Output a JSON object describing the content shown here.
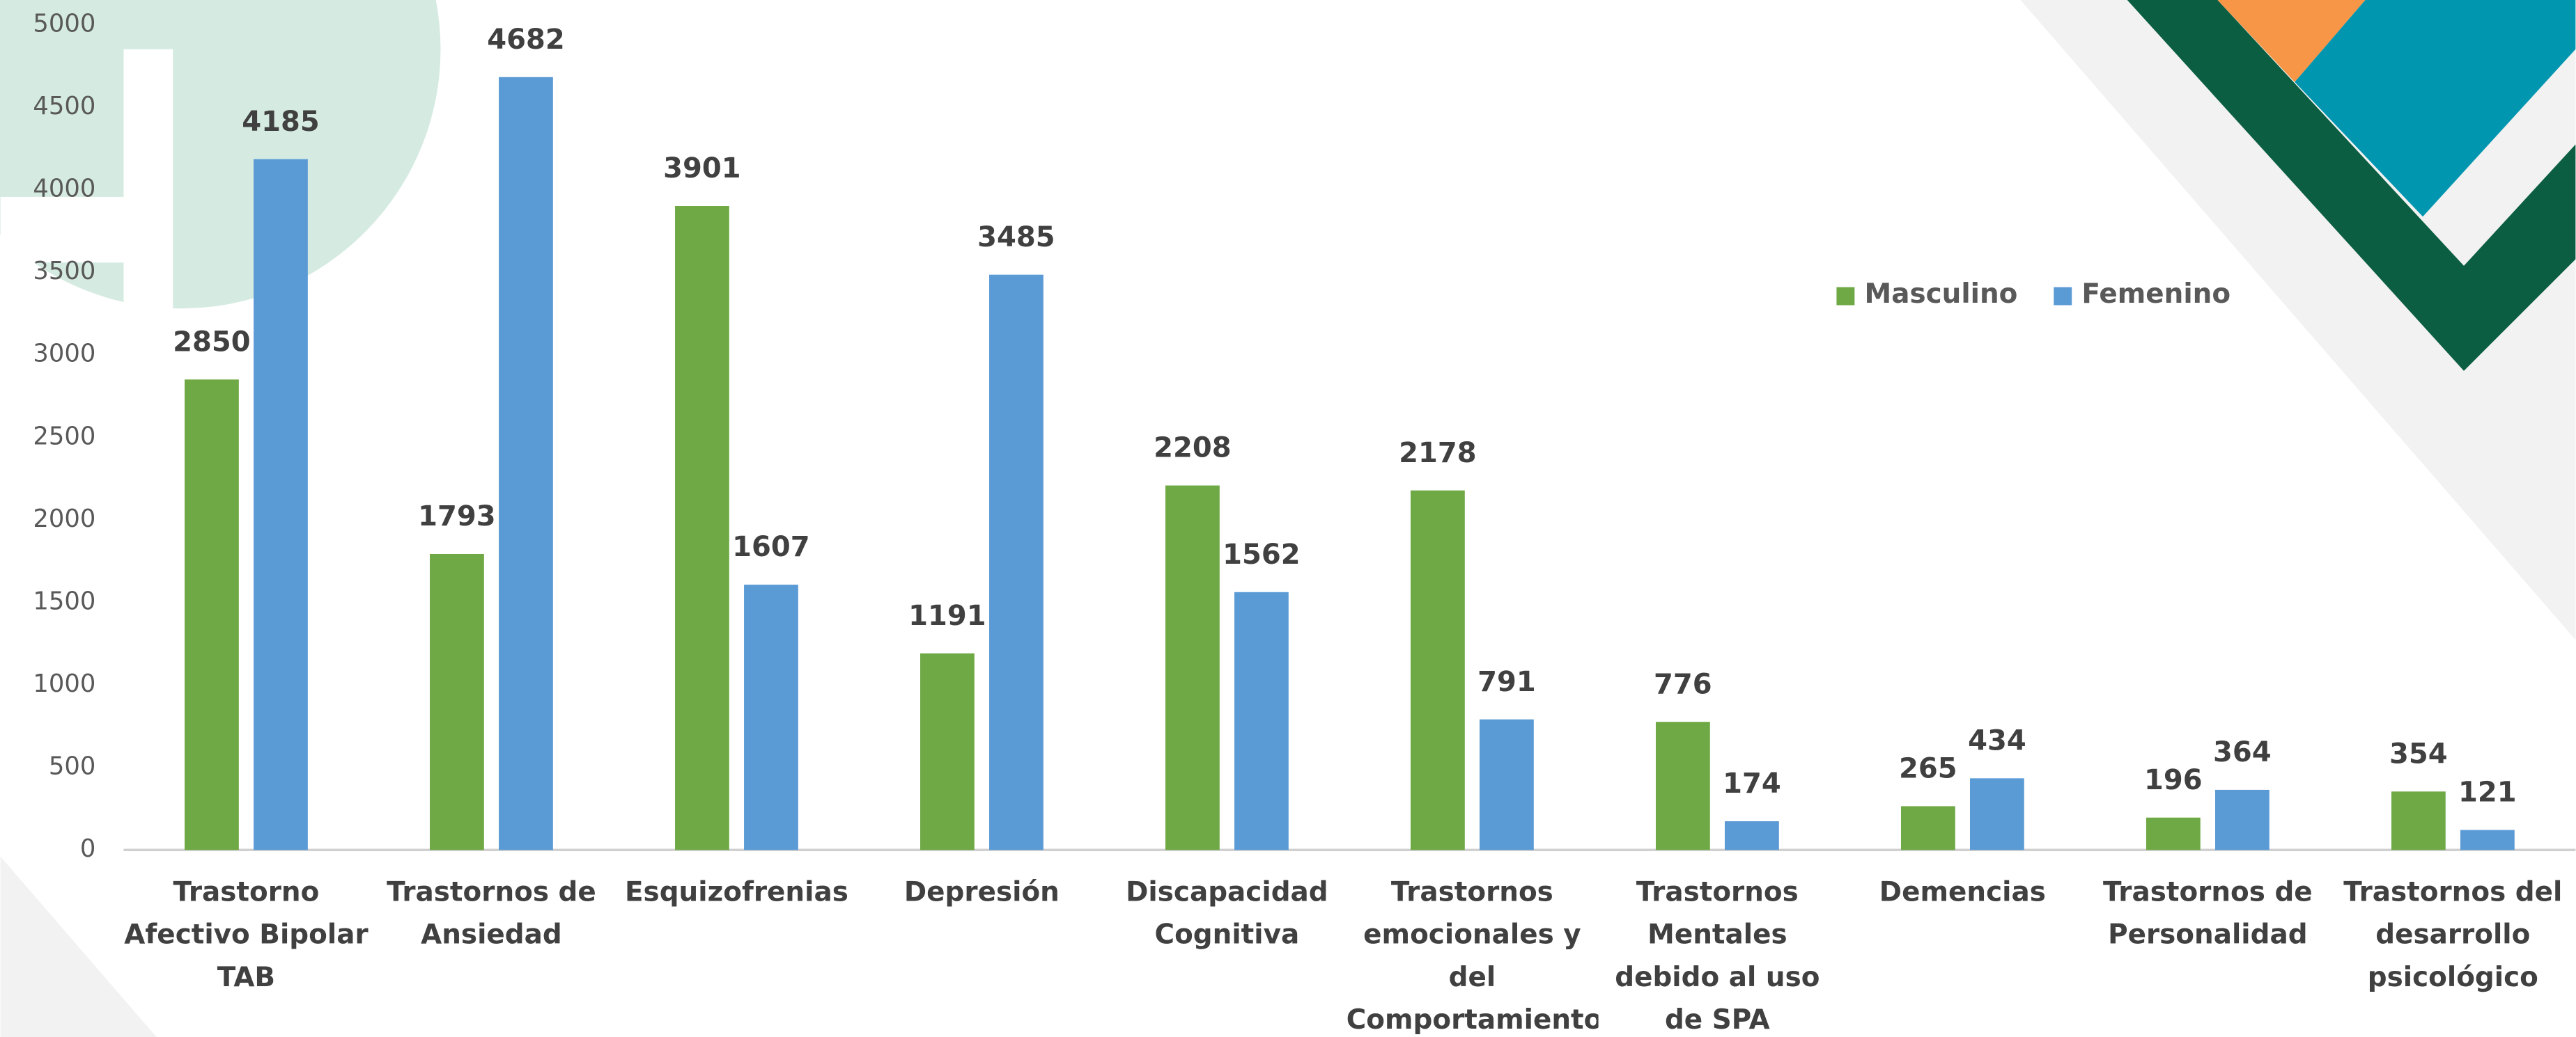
{
  "chart_data": {
    "type": "bar",
    "categories": [
      "Trastorno Afectivo Bipolar TAB",
      "Trastornos de Ansiedad",
      "Esquizofrenias",
      "Depresión",
      "Discapacidad Cognitiva",
      "Trastornos emocionales y del Comportamiento",
      "Trastornos Mentales debido al uso de SPA",
      "Demencias",
      "Trastornos de Personalidad",
      "Trastornos del desarrollo psicológico"
    ],
    "series": [
      {
        "name": "Masculino",
        "color": "#6fa945",
        "values": [
          2850,
          1793,
          3901,
          1191,
          2208,
          2178,
          776,
          265,
          196,
          354
        ]
      },
      {
        "name": "Femenino",
        "color": "#5b9bd5",
        "values": [
          4185,
          4682,
          1607,
          3485,
          1562,
          791,
          174,
          434,
          364,
          121
        ]
      }
    ],
    "ylim": [
      0,
      5000
    ],
    "yticks": [
      0,
      500,
      1000,
      1500,
      2000,
      2500,
      3000,
      3500,
      4000,
      4500,
      5000
    ],
    "grid": false,
    "legend": "upper right"
  }
}
